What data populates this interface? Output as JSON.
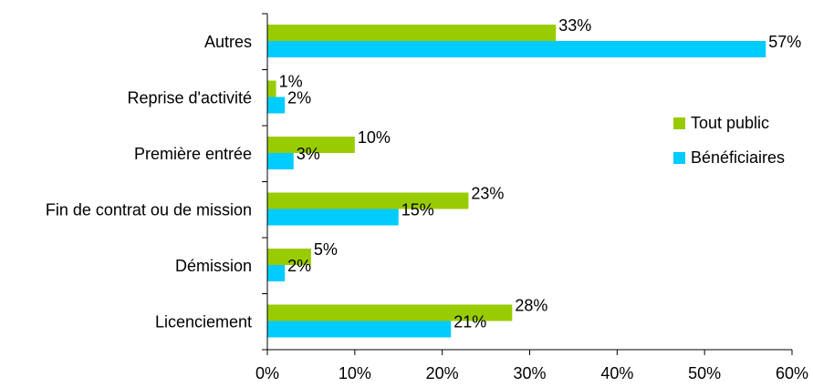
{
  "chart_data": {
    "type": "bar",
    "orientation": "horizontal",
    "categories": [
      "Autres",
      "Reprise d'activité",
      "Première entrée ",
      "Fin de contrat ou de mission",
      "Démission",
      "Licenciement"
    ],
    "series": [
      {
        "name": "Tout public",
        "color": "#99cc00",
        "values": [
          33,
          1,
          10,
          23,
          5,
          28
        ],
        "labels": [
          "33%",
          "1%",
          "10%",
          "23%",
          "5%",
          "28%"
        ]
      },
      {
        "name": "Bénéficiaires",
        "color": "#00ccff",
        "values": [
          57,
          2,
          3,
          15,
          2,
          21
        ],
        "labels": [
          "57%",
          "2%",
          "3%",
          "15%",
          "2%",
          "21%"
        ]
      }
    ],
    "xlim": [
      0,
      60
    ],
    "xticks": [
      "0%",
      "10%",
      "20%",
      "30%",
      "40%",
      "50%",
      "60%"
    ],
    "legend_position": "right",
    "grid": false
  }
}
